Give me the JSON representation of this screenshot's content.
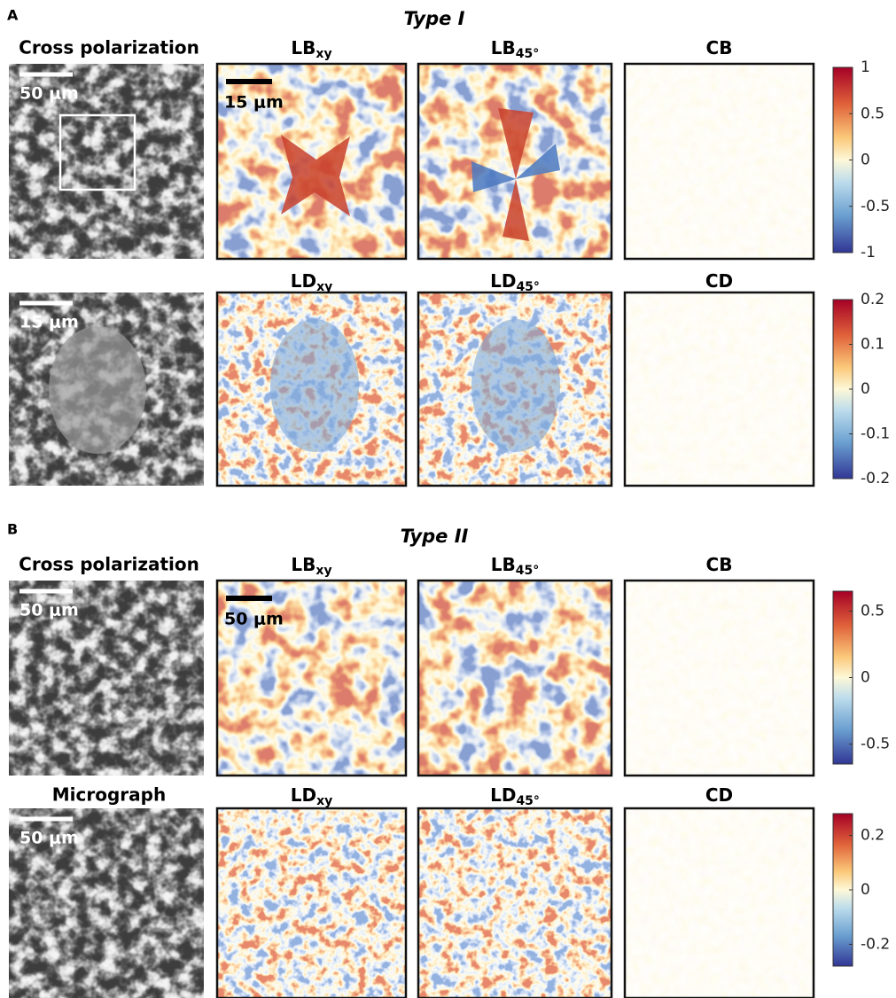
{
  "sections": [
    {
      "label": "A",
      "title": "Type I",
      "rows": [
        {
          "first_title": "Cross polarization",
          "first_scale": "50 μm",
          "panels": [
            {
              "name": "LB",
              "sub": "xy",
              "scale": "15 μm"
            },
            {
              "name": "LB",
              "sub": "45°"
            },
            {
              "name": "CB"
            }
          ],
          "colorbar": {
            "lim": [
              -1,
              1
            ],
            "ticks": [
              1,
              0.5,
              0,
              -0.5,
              -1
            ]
          }
        },
        {
          "first_scale": "15 μm",
          "panels": [
            {
              "name": "LD",
              "sub": "xy"
            },
            {
              "name": "LD",
              "sub": "45°"
            },
            {
              "name": "CD"
            }
          ],
          "colorbar": {
            "lim": [
              -0.2,
              0.2
            ],
            "ticks": [
              0.2,
              0.1,
              0,
              -0.1,
              -0.2
            ]
          }
        }
      ]
    },
    {
      "label": "B",
      "title": "Type II",
      "rows": [
        {
          "first_title": "Cross polarization",
          "first_scale": "50 μm",
          "panels": [
            {
              "name": "LB",
              "sub": "xy",
              "scale": "50 μm"
            },
            {
              "name": "LB",
              "sub": "45°"
            },
            {
              "name": "CB"
            }
          ],
          "colorbar": {
            "lim": [
              -0.65,
              0.65
            ],
            "ticks": [
              0.5,
              0,
              -0.5
            ]
          }
        },
        {
          "first_title": "Micrograph",
          "first_scale": "50 μm",
          "panels": [
            {
              "name": "LD",
              "sub": "xy"
            },
            {
              "name": "LD",
              "sub": "45°"
            },
            {
              "name": "CD"
            }
          ],
          "colorbar": {
            "lim": [
              -0.28,
              0.28
            ],
            "ticks": [
              0.2,
              0,
              -0.2
            ]
          }
        }
      ]
    }
  ]
}
